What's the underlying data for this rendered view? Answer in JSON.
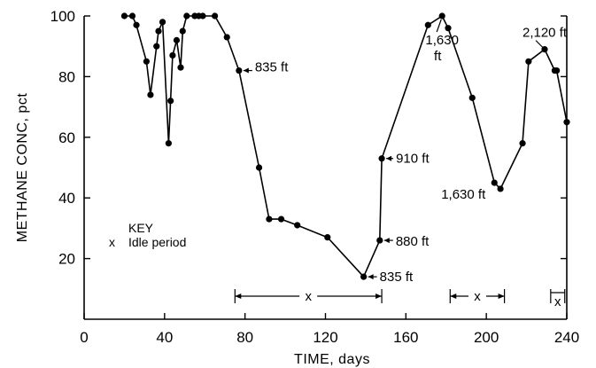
{
  "chart_data": {
    "type": "line",
    "xlabel": "TIME, days",
    "ylabel": "METHANE CONC, pct",
    "xlim": [
      0,
      240
    ],
    "ylim": [
      0,
      100
    ],
    "xticks": [
      0,
      40,
      80,
      120,
      160,
      200,
      240
    ],
    "yticks": [
      20,
      40,
      60,
      80,
      100
    ],
    "xtick_labels": [
      "0",
      "40",
      "80",
      "120",
      "160",
      "200",
      "240"
    ],
    "ytick_labels": [
      "20",
      "40",
      "60",
      "80",
      "100"
    ],
    "grid": false,
    "series": [
      {
        "x": [
          20,
          24,
          26,
          31,
          33,
          36,
          37,
          39,
          42,
          43,
          44,
          46,
          48,
          49,
          51,
          55,
          57,
          59,
          65,
          71,
          77,
          87,
          92,
          98,
          106,
          121,
          139,
          147,
          148,
          171,
          178,
          181,
          193,
          204,
          207,
          218,
          221,
          229,
          234,
          235,
          240
        ],
        "y": [
          100,
          100,
          97,
          85,
          74,
          90,
          95,
          98,
          58,
          72,
          87,
          92,
          83,
          95,
          100,
          100,
          100,
          100,
          100,
          93,
          82,
          50,
          33,
          33,
          31,
          27,
          14,
          26,
          53,
          97,
          100,
          96,
          73,
          45,
          43,
          58,
          85,
          89,
          82,
          82,
          65
        ]
      }
    ],
    "annotations": [
      {
        "text": "835 ft",
        "x": 77,
        "y": 82
      },
      {
        "text": "1,630",
        "x": 178,
        "y": 100
      },
      {
        "text": "ft",
        "x": 178,
        "y": 100
      },
      {
        "text": "2,120 ft",
        "x": 229,
        "y": 89
      },
      {
        "text": "910 ft",
        "x": 148,
        "y": 53
      },
      {
        "text": "1,630 ft",
        "x": 204,
        "y": 45
      },
      {
        "text": "880 ft",
        "x": 147,
        "y": 26
      },
      {
        "text": "835 ft",
        "x": 139,
        "y": 14
      }
    ],
    "idle_periods": [
      {
        "start": 75,
        "end": 148,
        "label": "x"
      },
      {
        "start": 182,
        "end": 209,
        "label": "x"
      },
      {
        "start": 232,
        "end": 239,
        "label": "x"
      }
    ],
    "key": {
      "title": "KEY",
      "symbol": "x",
      "text": "Idle period"
    }
  }
}
